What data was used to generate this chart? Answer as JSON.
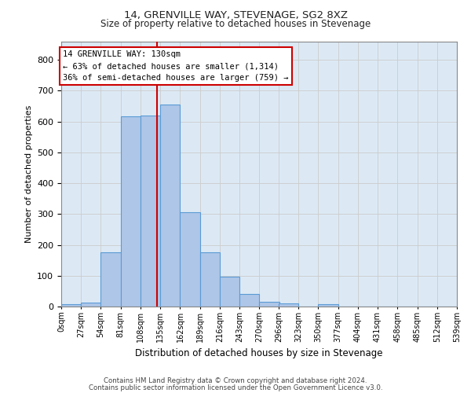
{
  "title1": "14, GRENVILLE WAY, STEVENAGE, SG2 8XZ",
  "title2": "Size of property relative to detached houses in Stevenage",
  "xlabel": "Distribution of detached houses by size in Stevenage",
  "ylabel": "Number of detached properties",
  "bar_values": [
    8,
    13,
    175,
    617,
    620,
    655,
    305,
    175,
    97,
    40,
    15,
    10,
    0,
    8,
    0,
    0,
    0,
    0,
    0,
    0
  ],
  "bin_edges": [
    0,
    27,
    54,
    81,
    108,
    135,
    162,
    189,
    216,
    243,
    270,
    296,
    323,
    350,
    377,
    404,
    431,
    458,
    485,
    512,
    539
  ],
  "tick_labels": [
    "0sqm",
    "27sqm",
    "54sqm",
    "81sqm",
    "108sqm",
    "135sqm",
    "162sqm",
    "189sqm",
    "216sqm",
    "243sqm",
    "270sqm",
    "296sqm",
    "323sqm",
    "350sqm",
    "377sqm",
    "404sqm",
    "431sqm",
    "458sqm",
    "485sqm",
    "512sqm",
    "539sqm"
  ],
  "bar_color": "#aec6e8",
  "bar_edge_color": "#5b9bd5",
  "property_line_x": 130,
  "annotation_line1": "14 GRENVILLE WAY: 130sqm",
  "annotation_line2": "← 63% of detached houses are smaller (1,314)",
  "annotation_line3": "36% of semi-detached houses are larger (759) →",
  "annotation_box_color": "#ffffff",
  "annotation_border_color": "#cc0000",
  "vline_color": "#cc0000",
  "grid_color": "#cccccc",
  "background_color": "#dce9f5",
  "ylim": [
    0,
    860
  ],
  "yticks": [
    0,
    100,
    200,
    300,
    400,
    500,
    600,
    700,
    800
  ],
  "footer1": "Contains HM Land Registry data © Crown copyright and database right 2024.",
  "footer2": "Contains public sector information licensed under the Open Government Licence v3.0."
}
